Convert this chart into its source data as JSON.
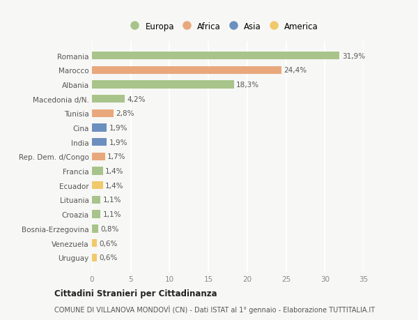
{
  "countries": [
    "Romania",
    "Marocco",
    "Albania",
    "Macedonia d/N.",
    "Tunisia",
    "Cina",
    "India",
    "Rep. Dem. d/Congo",
    "Francia",
    "Ecuador",
    "Lituania",
    "Croazia",
    "Bosnia-Erzegovina",
    "Venezuela",
    "Uruguay"
  ],
  "values": [
    31.9,
    24.4,
    18.3,
    4.2,
    2.8,
    1.9,
    1.9,
    1.7,
    1.4,
    1.4,
    1.1,
    1.1,
    0.8,
    0.6,
    0.6
  ],
  "labels": [
    "31,9%",
    "24,4%",
    "18,3%",
    "4,2%",
    "2,8%",
    "1,9%",
    "1,9%",
    "1,7%",
    "1,4%",
    "1,4%",
    "1,1%",
    "1,1%",
    "0,8%",
    "0,6%",
    "0,6%"
  ],
  "continents": [
    "Europa",
    "Africa",
    "Europa",
    "Europa",
    "Africa",
    "Asia",
    "Asia",
    "Africa",
    "Europa",
    "America",
    "Europa",
    "Europa",
    "Europa",
    "America",
    "America"
  ],
  "colors": {
    "Europa": "#a8c48a",
    "Africa": "#e8a87c",
    "Asia": "#6b8fbf",
    "America": "#f0c96a"
  },
  "legend_order": [
    "Europa",
    "Africa",
    "Asia",
    "America"
  ],
  "title": "Cittadini Stranieri per Cittadinanza",
  "subtitle": "COMUNE DI VILLANOVA MONDOVÌ (CN) - Dati ISTAT al 1° gennaio - Elaborazione TUTTITALIA.IT",
  "xlim": [
    0,
    35
  ],
  "xticks": [
    0,
    5,
    10,
    15,
    20,
    25,
    30,
    35
  ],
  "bg_color": "#f7f7f5",
  "grid_color": "#ffffff",
  "bar_height": 0.55
}
